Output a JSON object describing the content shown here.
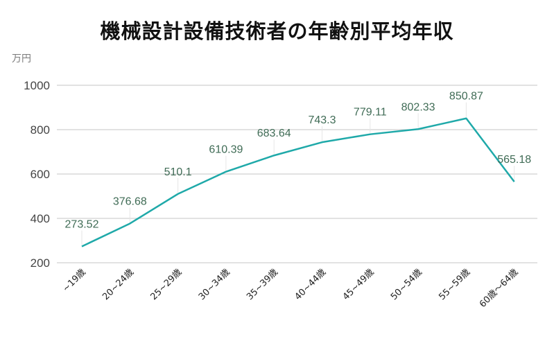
{
  "title": "機械設計設備技術者の年齢別平均年収",
  "unit_label": "万円",
  "colors": {
    "line": "#1fa9a9",
    "grid": "#d0d0d0",
    "data_label": "#3f6b55"
  },
  "chart_data": {
    "type": "line",
    "title": "機械設計設備技術者の年齢別平均年収",
    "xlabel": "",
    "ylabel": "万円",
    "categories": [
      "~19歳",
      "20~24歳",
      "25~29歳",
      "30~34歳",
      "35~39歳",
      "40~44歳",
      "45~49歳",
      "50~54歳",
      "55~59歳",
      "60歳～64歳"
    ],
    "series": [
      {
        "name": "平均年収",
        "values": [
          273.52,
          376.68,
          510.1,
          610.39,
          683.64,
          743.3,
          779.11,
          802.33,
          850.87,
          565.18
        ]
      }
    ],
    "data_labels": [
      "273.52",
      "376.68",
      "510.1",
      "610.39",
      "683.64",
      "743.3",
      "779.11",
      "802.33",
      "850.87",
      "565.18"
    ],
    "yticks": [
      200,
      400,
      600,
      800,
      1000
    ],
    "ylim": [
      200,
      1000
    ],
    "grid": true,
    "legend": "none"
  }
}
